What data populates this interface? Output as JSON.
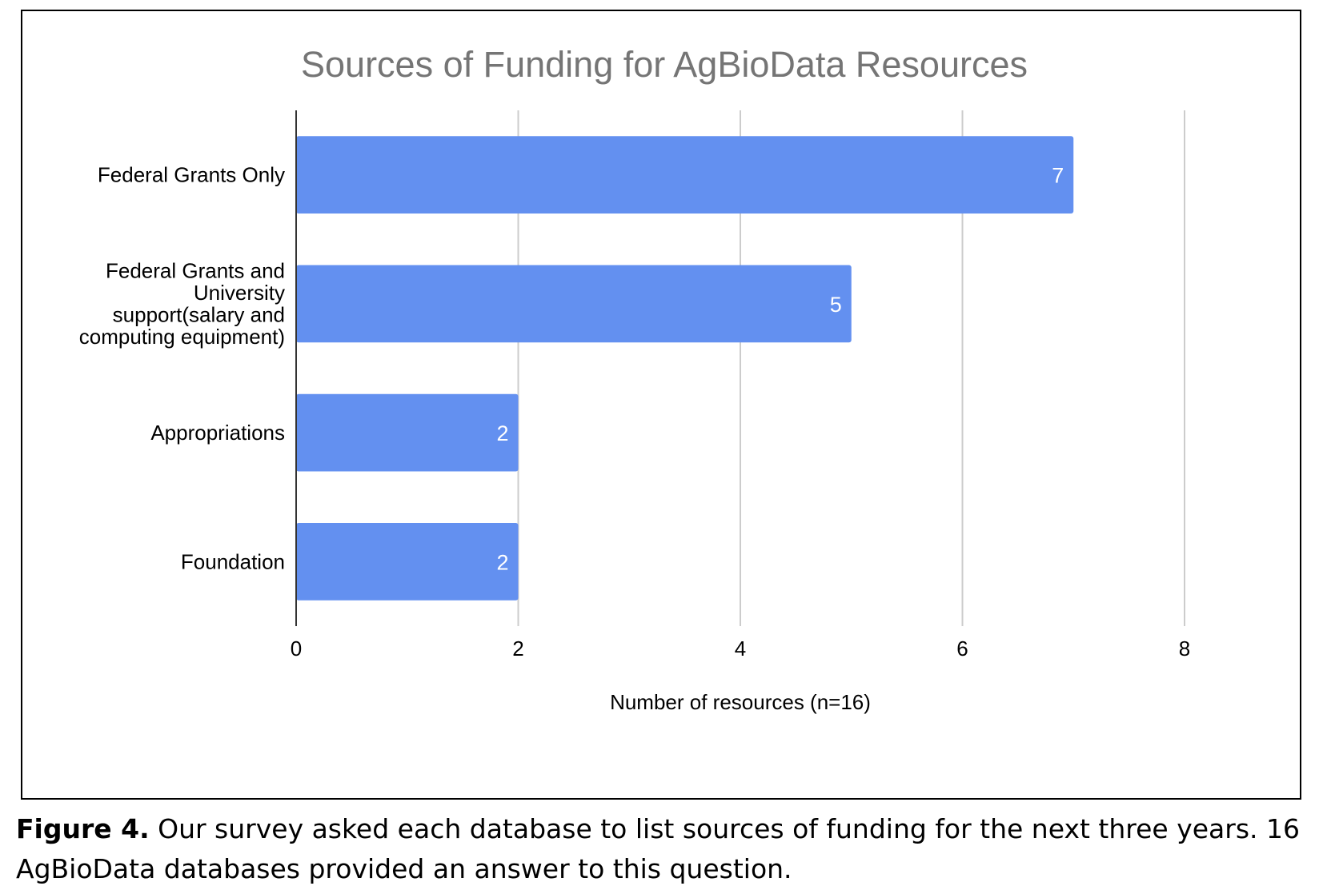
{
  "chart_data": {
    "type": "bar",
    "orientation": "horizontal",
    "title": "Sources of Funding for AgBioData Resources",
    "xlabel": "Number of resources (n=16)",
    "ylabel": "",
    "categories": [
      [
        "Federal Grants Only"
      ],
      [
        "Federal Grants and",
        "University",
        "support(salary and",
        "computing equipment)"
      ],
      [
        "Appropriations"
      ],
      [
        "Foundation"
      ]
    ],
    "values": [
      7,
      5,
      2,
      2
    ],
    "xlim": [
      0,
      8
    ],
    "xticks": [
      "0",
      "2",
      "4",
      "6",
      "8"
    ],
    "grid": true,
    "legend": "none",
    "bar_color": "#6390f0",
    "gridline_color": "#cccccc",
    "title_color": "#757575",
    "data_label_color": "#ffffff"
  },
  "caption": {
    "label": "Figure 4.",
    "text": " Our survey asked each database to list sources of funding for the next three years. 16 AgBioData databases provided an answer to this question."
  }
}
